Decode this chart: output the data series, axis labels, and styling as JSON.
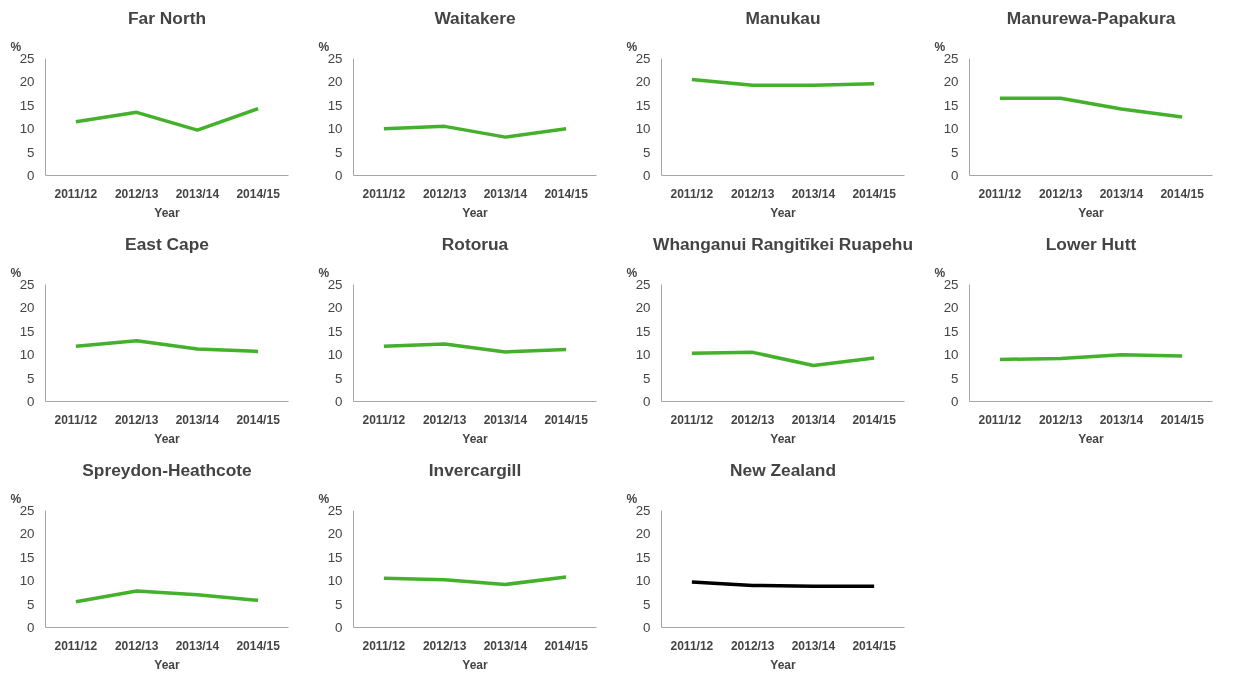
{
  "chart_data": [
    {
      "type": "line",
      "title": "Far North",
      "xlabel": "Year",
      "ylabel": "%",
      "categories": [
        "2011/12",
        "2012/13",
        "2013/14",
        "2014/15"
      ],
      "series": [
        {
          "color": "#44b02c",
          "values": [
            11.5,
            13.5,
            9.7,
            14.3
          ]
        }
      ],
      "ylim": [
        0,
        25
      ],
      "yticks": [
        0,
        5,
        10,
        15,
        20,
        25
      ],
      "grid": false
    },
    {
      "type": "line",
      "title": "Waitakere",
      "xlabel": "Year",
      "ylabel": "%",
      "categories": [
        "2011/12",
        "2012/13",
        "2013/14",
        "2014/15"
      ],
      "series": [
        {
          "color": "#44b02c",
          "values": [
            10.0,
            10.5,
            8.2,
            10.0
          ]
        }
      ],
      "ylim": [
        0,
        25
      ],
      "yticks": [
        0,
        5,
        10,
        15,
        20,
        25
      ],
      "grid": false
    },
    {
      "type": "line",
      "title": "Manukau",
      "xlabel": "Year",
      "ylabel": "%",
      "categories": [
        "2011/12",
        "2012/13",
        "2013/14",
        "2014/15"
      ],
      "series": [
        {
          "color": "#44b02c",
          "values": [
            20.5,
            19.3,
            19.3,
            19.6
          ]
        }
      ],
      "ylim": [
        0,
        25
      ],
      "yticks": [
        0,
        5,
        10,
        15,
        20,
        25
      ],
      "grid": false
    },
    {
      "type": "line",
      "title": "Manurewa-Papakura",
      "xlabel": "Year",
      "ylabel": "%",
      "categories": [
        "2011/12",
        "2012/13",
        "2013/14",
        "2014/15"
      ],
      "series": [
        {
          "color": "#44b02c",
          "values": [
            16.5,
            16.5,
            14.2,
            12.5
          ]
        }
      ],
      "ylim": [
        0,
        25
      ],
      "yticks": [
        0,
        5,
        10,
        15,
        20,
        25
      ],
      "grid": false
    },
    {
      "type": "line",
      "title": "East Cape",
      "xlabel": "Year",
      "ylabel": "%",
      "categories": [
        "2011/12",
        "2012/13",
        "2013/14",
        "2014/15"
      ],
      "series": [
        {
          "color": "#44b02c",
          "values": [
            11.8,
            13.0,
            11.2,
            10.7
          ]
        }
      ],
      "ylim": [
        0,
        25
      ],
      "yticks": [
        0,
        5,
        10,
        15,
        20,
        25
      ],
      "grid": false
    },
    {
      "type": "line",
      "title": "Rotorua",
      "xlabel": "Year",
      "ylabel": "%",
      "categories": [
        "2011/12",
        "2012/13",
        "2013/14",
        "2014/15"
      ],
      "series": [
        {
          "color": "#44b02c",
          "values": [
            11.8,
            12.3,
            10.6,
            11.1
          ]
        }
      ],
      "ylim": [
        0,
        25
      ],
      "yticks": [
        0,
        5,
        10,
        15,
        20,
        25
      ],
      "grid": false
    },
    {
      "type": "line",
      "title": "Whanganui Rangitīkei Ruapehu",
      "xlabel": "Year",
      "ylabel": "%",
      "categories": [
        "2011/12",
        "2012/13",
        "2013/14",
        "2014/15"
      ],
      "series": [
        {
          "color": "#44b02c",
          "values": [
            10.3,
            10.5,
            7.7,
            9.3
          ]
        }
      ],
      "ylim": [
        0,
        25
      ],
      "yticks": [
        0,
        5,
        10,
        15,
        20,
        25
      ],
      "grid": false
    },
    {
      "type": "line",
      "title": "Lower Hutt",
      "xlabel": "Year",
      "ylabel": "%",
      "categories": [
        "2011/12",
        "2012/13",
        "2013/14",
        "2014/15"
      ],
      "series": [
        {
          "color": "#44b02c",
          "values": [
            9.0,
            9.2,
            10.0,
            9.7
          ]
        }
      ],
      "ylim": [
        0,
        25
      ],
      "yticks": [
        0,
        5,
        10,
        15,
        20,
        25
      ],
      "grid": false
    },
    {
      "type": "line",
      "title": "Spreydon-Heathcote",
      "xlabel": "Year",
      "ylabel": "%",
      "categories": [
        "2011/12",
        "2012/13",
        "2013/14",
        "2014/15"
      ],
      "series": [
        {
          "color": "#44b02c",
          "values": [
            5.5,
            7.8,
            7.0,
            5.8
          ]
        }
      ],
      "ylim": [
        0,
        25
      ],
      "yticks": [
        0,
        5,
        10,
        15,
        20,
        25
      ],
      "grid": false
    },
    {
      "type": "line",
      "title": "Invercargill",
      "xlabel": "Year",
      "ylabel": "%",
      "categories": [
        "2011/12",
        "2012/13",
        "2013/14",
        "2014/15"
      ],
      "series": [
        {
          "color": "#44b02c",
          "values": [
            10.5,
            10.2,
            9.2,
            10.8
          ]
        }
      ],
      "ylim": [
        0,
        25
      ],
      "yticks": [
        0,
        5,
        10,
        15,
        20,
        25
      ],
      "grid": false
    },
    {
      "type": "line",
      "title": "New Zealand",
      "xlabel": "Year",
      "ylabel": "%",
      "categories": [
        "2011/12",
        "2012/13",
        "2013/14",
        "2014/15"
      ],
      "series": [
        {
          "color": "#000000",
          "values": [
            9.7,
            9.0,
            8.8,
            8.8
          ]
        }
      ],
      "ylim": [
        0,
        25
      ],
      "yticks": [
        0,
        5,
        10,
        15,
        20,
        25
      ],
      "grid": false
    }
  ]
}
